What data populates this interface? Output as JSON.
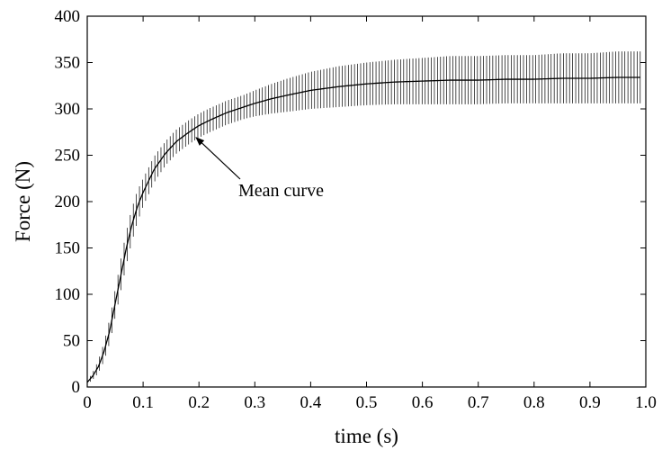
{
  "chart_data": {
    "type": "line",
    "title": "",
    "xlabel": "time (s)",
    "ylabel": "Force (N)",
    "xlim": [
      0,
      1.0
    ],
    "ylim": [
      0,
      400
    ],
    "grid": false,
    "x_ticks": [
      "0",
      "0.1",
      "0.2",
      "0.3",
      "0.4",
      "0.5",
      "0.6",
      "0.7",
      "0.8",
      "0.9",
      "1.0"
    ],
    "y_ticks": [
      "0",
      "50",
      "100",
      "150",
      "200",
      "250",
      "300",
      "350",
      "400"
    ],
    "series": [
      {
        "color": "#000000",
        "error_bars": true,
        "x": [
          0,
          0.01,
          0.02,
          0.03,
          0.04,
          0.05,
          0.06,
          0.07,
          0.08,
          0.09,
          0.1,
          0.12,
          0.14,
          0.16,
          0.18,
          0.2,
          0.22,
          0.25,
          0.28,
          0.3,
          0.33,
          0.36,
          0.4,
          0.45,
          0.5,
          0.55,
          0.6,
          0.65,
          0.7,
          0.75,
          0.8,
          0.85,
          0.9,
          0.95,
          0.99
        ],
        "y": [
          5,
          12,
          22,
          38,
          60,
          90,
          120,
          150,
          175,
          195,
          210,
          235,
          252,
          265,
          274,
          282,
          288,
          296,
          302,
          306,
          311,
          315,
          320,
          324,
          327,
          329,
          330,
          331,
          331,
          332,
          332,
          333,
          333,
          334,
          334
        ],
        "error": [
          2,
          4,
          7,
          10,
          13,
          15,
          17,
          18,
          18,
          17,
          15,
          14,
          13,
          13,
          13,
          13,
          13,
          13,
          13,
          14,
          16,
          18,
          20,
          22,
          23,
          24,
          25,
          26,
          26,
          26,
          26,
          27,
          27,
          28,
          28
        ]
      }
    ],
    "annotations": [
      {
        "text": "Mean curve",
        "point_x": 0.19,
        "point_y": 273
      }
    ]
  }
}
